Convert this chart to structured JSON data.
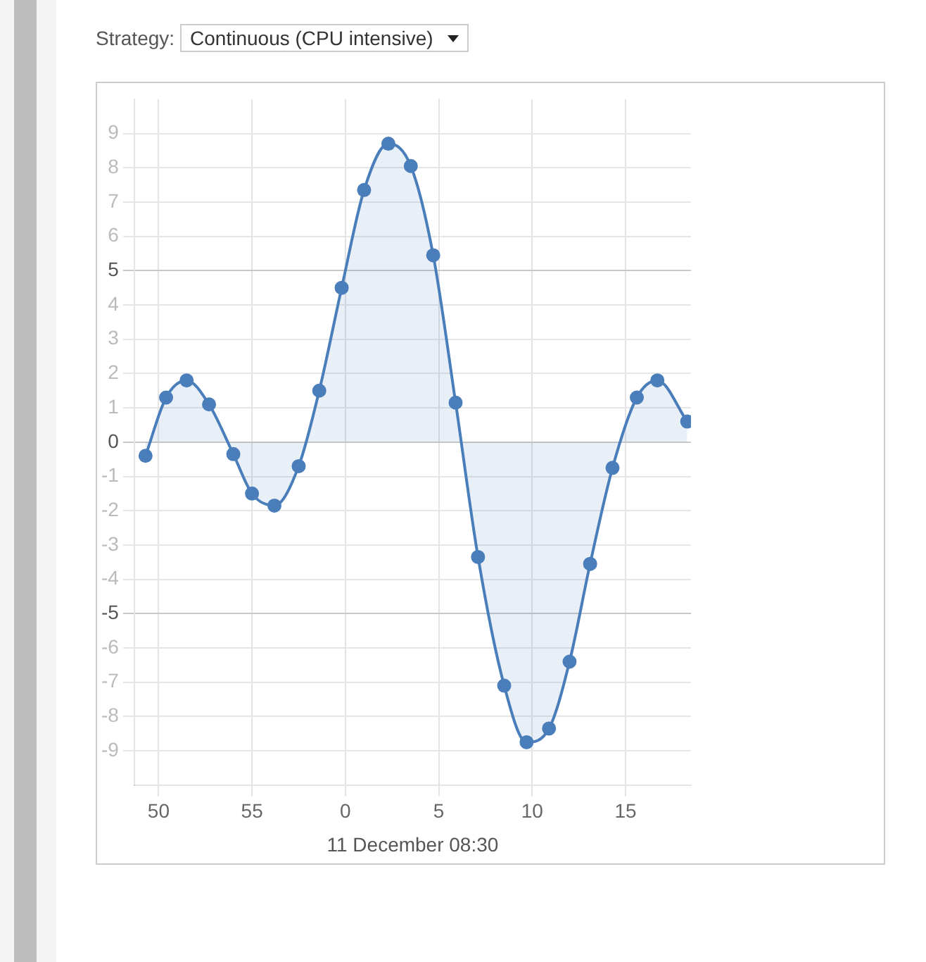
{
  "chart_data": {
    "type": "area",
    "xlabel": "11 December 08:30",
    "annotations": [
      "Strategy:",
      "Continuous (CPU intensive)"
    ],
    "x": [
      "--12-11T08:29:49.3",
      "--12-11T08:29:50.4",
      "--12-11T08:29:51.5",
      "--12-11T08:29:52.7",
      "--12-11T08:29:54.0",
      "--12-11T08:29:55.0",
      "--12-11T08:29:56.2",
      "--12-11T08:29:57.5",
      "--12-11T08:29:58.6",
      "--12-11T08:29:59.8",
      "--12-11T08:30:01.0",
      "--12-11T08:30:02.3",
      "--12-11T08:30:03.5",
      "--12-11T08:30:04.7",
      "--12-11T08:30:05.9",
      "--12-11T08:30:07.1",
      "--12-11T08:30:08.5",
      "--12-11T08:30:09.7",
      "--12-11T08:30:10.9",
      "--12-11T08:30:12.0",
      "--12-11T08:30:13.1",
      "--12-11T08:30:14.3",
      "--12-11T08:30:15.6",
      "--12-11T08:30:16.7",
      "--12-11T08:30:18.3"
    ],
    "series": [
      {
        "color": "#4a7ebb",
        "values": [
          -0.4,
          1.3,
          1.8,
          1.1,
          -0.35,
          -1.5,
          -1.85,
          -0.7,
          1.5,
          4.5,
          7.35,
          8.7,
          8.05,
          5.45,
          1.15,
          -3.35,
          -7.1,
          -8.75,
          -8.35,
          -6.4,
          -3.55,
          -0.75,
          1.3,
          1.8,
          0.6
        ]
      }
    ],
    "xlim": [
      "--12-11T08:29:48.7",
      "--12-11T08:30:18.5"
    ],
    "xticks": [
      {
        "value": "--12-11T08:29:50",
        "label": "50"
      },
      {
        "value": "--12-11T08:29:55",
        "label": "55"
      },
      {
        "value": "--12-11T08:30:00",
        "label": "0"
      },
      {
        "value": "--12-11T08:30:05",
        "label": "5"
      },
      {
        "value": "--12-11T08:30:10",
        "label": "10"
      },
      {
        "value": "--12-11T08:30:15",
        "label": "15"
      }
    ],
    "ylim": [
      -10,
      10
    ],
    "yticks": [
      -9,
      -8,
      -7,
      -6,
      -5,
      -4,
      -3,
      -2,
      -1,
      0,
      1,
      2,
      3,
      4,
      5,
      6,
      7,
      8,
      9
    ],
    "grid": true,
    "legend": false,
    "marker": "circle",
    "line_style": "solid"
  }
}
